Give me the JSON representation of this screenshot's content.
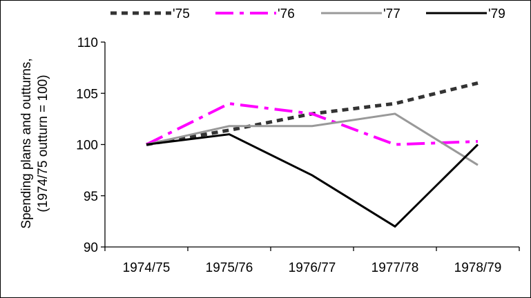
{
  "chart_data": {
    "type": "line",
    "categories": [
      "1974/75",
      "1975/76",
      "1976/77",
      "1977/78",
      "1978/79"
    ],
    "ylabel_lines": [
      "Spending plans and outturns,",
      "(1974/75 outturn = 100)"
    ],
    "xlabel": "",
    "ylim": [
      90,
      110
    ],
    "yticks": [
      90,
      95,
      100,
      105,
      110
    ],
    "grid": false,
    "legend_position": "top",
    "series": [
      {
        "name": "'75",
        "color": "#333333",
        "dash": "dotted-heavy",
        "values": [
          100,
          101.4,
          103,
          104,
          106
        ]
      },
      {
        "name": "'76",
        "color": "#ff00ff",
        "dash": "dash-dot",
        "values": [
          100,
          104,
          103,
          100,
          100.3
        ]
      },
      {
        "name": "'77",
        "color": "#999999",
        "dash": "solid",
        "values": [
          100,
          101.8,
          101.8,
          103,
          98
        ]
      },
      {
        "name": "'79",
        "color": "#000000",
        "dash": "solid",
        "values": [
          100,
          101,
          97,
          92,
          100
        ]
      }
    ]
  }
}
